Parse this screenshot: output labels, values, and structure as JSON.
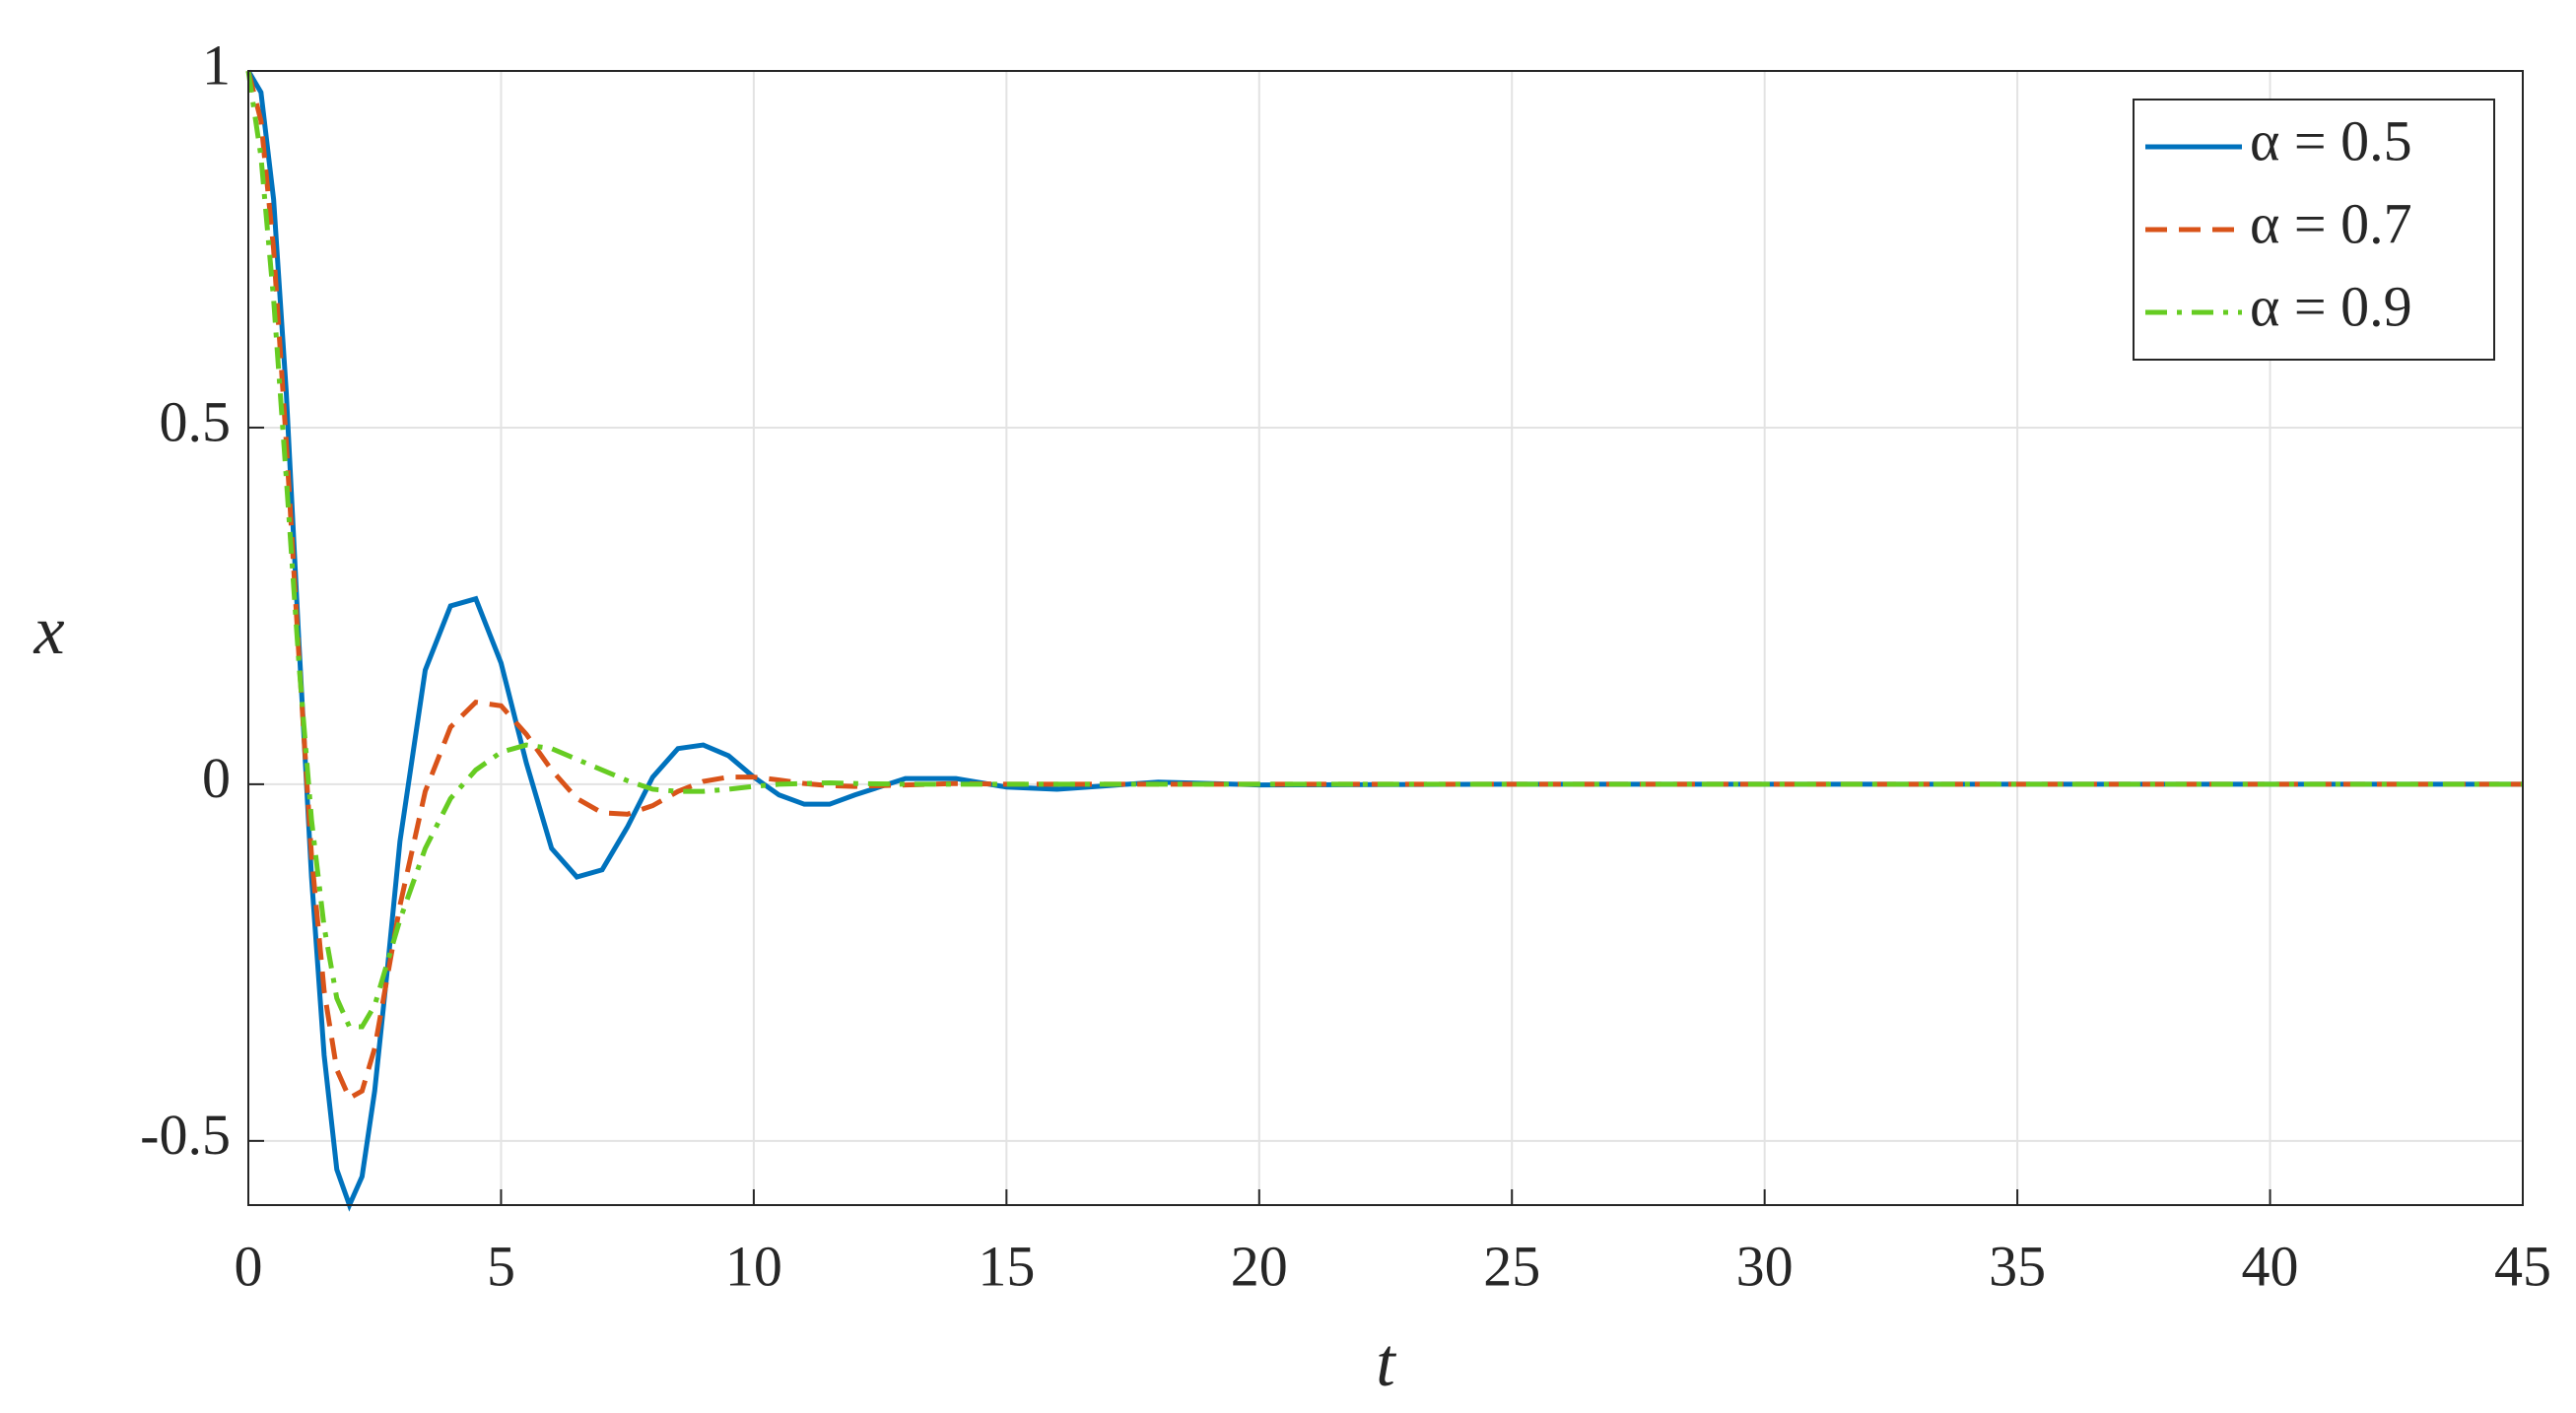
{
  "chart_data": {
    "type": "line",
    "xlabel": "t",
    "ylabel": "x",
    "x": [
      0,
      0.25,
      0.5,
      0.75,
      1,
      1.25,
      1.5,
      1.75,
      2,
      2.25,
      2.5,
      2.75,
      3,
      3.5,
      4,
      4.5,
      5,
      5.5,
      6,
      6.5,
      7,
      7.5,
      8,
      8.5,
      9,
      9.5,
      10,
      10.5,
      11,
      11.5,
      12,
      13,
      14,
      15,
      16,
      17,
      18,
      19,
      20,
      25,
      30,
      35,
      40,
      45
    ],
    "series": [
      {
        "name": "α = 0.5",
        "color": "#0072bd",
        "dash": "solid",
        "values": [
          1,
          0.97,
          0.82,
          0.55,
          0.2,
          -0.13,
          -0.38,
          -0.54,
          -0.59,
          -0.55,
          -0.43,
          -0.26,
          -0.08,
          0.16,
          0.25,
          0.26,
          0.17,
          0.03,
          -0.09,
          -0.13,
          -0.12,
          -0.06,
          0.01,
          0.05,
          0.055,
          0.04,
          0.01,
          -0.015,
          -0.028,
          -0.028,
          -0.015,
          0.008,
          0.008,
          -0.004,
          -0.007,
          -0.002,
          0.003,
          0.001,
          -0.001,
          0,
          0,
          0,
          0,
          0
        ]
      },
      {
        "name": "α = 0.7",
        "color": "#d95319",
        "dash": "dashed",
        "values": [
          1,
          0.93,
          0.75,
          0.48,
          0.18,
          -0.1,
          -0.29,
          -0.4,
          -0.44,
          -0.43,
          -0.37,
          -0.27,
          -0.17,
          -0.01,
          0.08,
          0.115,
          0.11,
          0.07,
          0.02,
          -0.02,
          -0.04,
          -0.042,
          -0.03,
          -0.01,
          0.004,
          0.01,
          0.01,
          0.006,
          0.001,
          -0.002,
          -0.003,
          -0.001,
          0.001,
          0,
          0,
          0,
          0,
          0,
          0,
          0,
          0,
          0,
          0,
          0
        ]
      },
      {
        "name": "α = 0.9",
        "color": "#66cc22",
        "dash": "dashdot",
        "values": [
          1,
          0.88,
          0.68,
          0.43,
          0.17,
          -0.05,
          -0.2,
          -0.3,
          -0.34,
          -0.34,
          -0.31,
          -0.25,
          -0.19,
          -0.09,
          -0.02,
          0.02,
          0.045,
          0.055,
          0.05,
          0.035,
          0.02,
          0.005,
          -0.007,
          -0.01,
          -0.01,
          -0.007,
          -0.003,
          0,
          0.001,
          0.002,
          0.001,
          0,
          0,
          0,
          0,
          0,
          0,
          0,
          0,
          0,
          0,
          0,
          0,
          0
        ]
      }
    ],
    "xlim": [
      0,
      45
    ],
    "xticks": [
      0,
      5,
      10,
      15,
      20,
      25,
      30,
      35,
      40,
      45
    ],
    "ylim": [
      -0.59,
      1
    ],
    "yticks": [
      -0.5,
      0,
      0.5,
      1
    ],
    "grid": true,
    "legend": "top-right"
  }
}
